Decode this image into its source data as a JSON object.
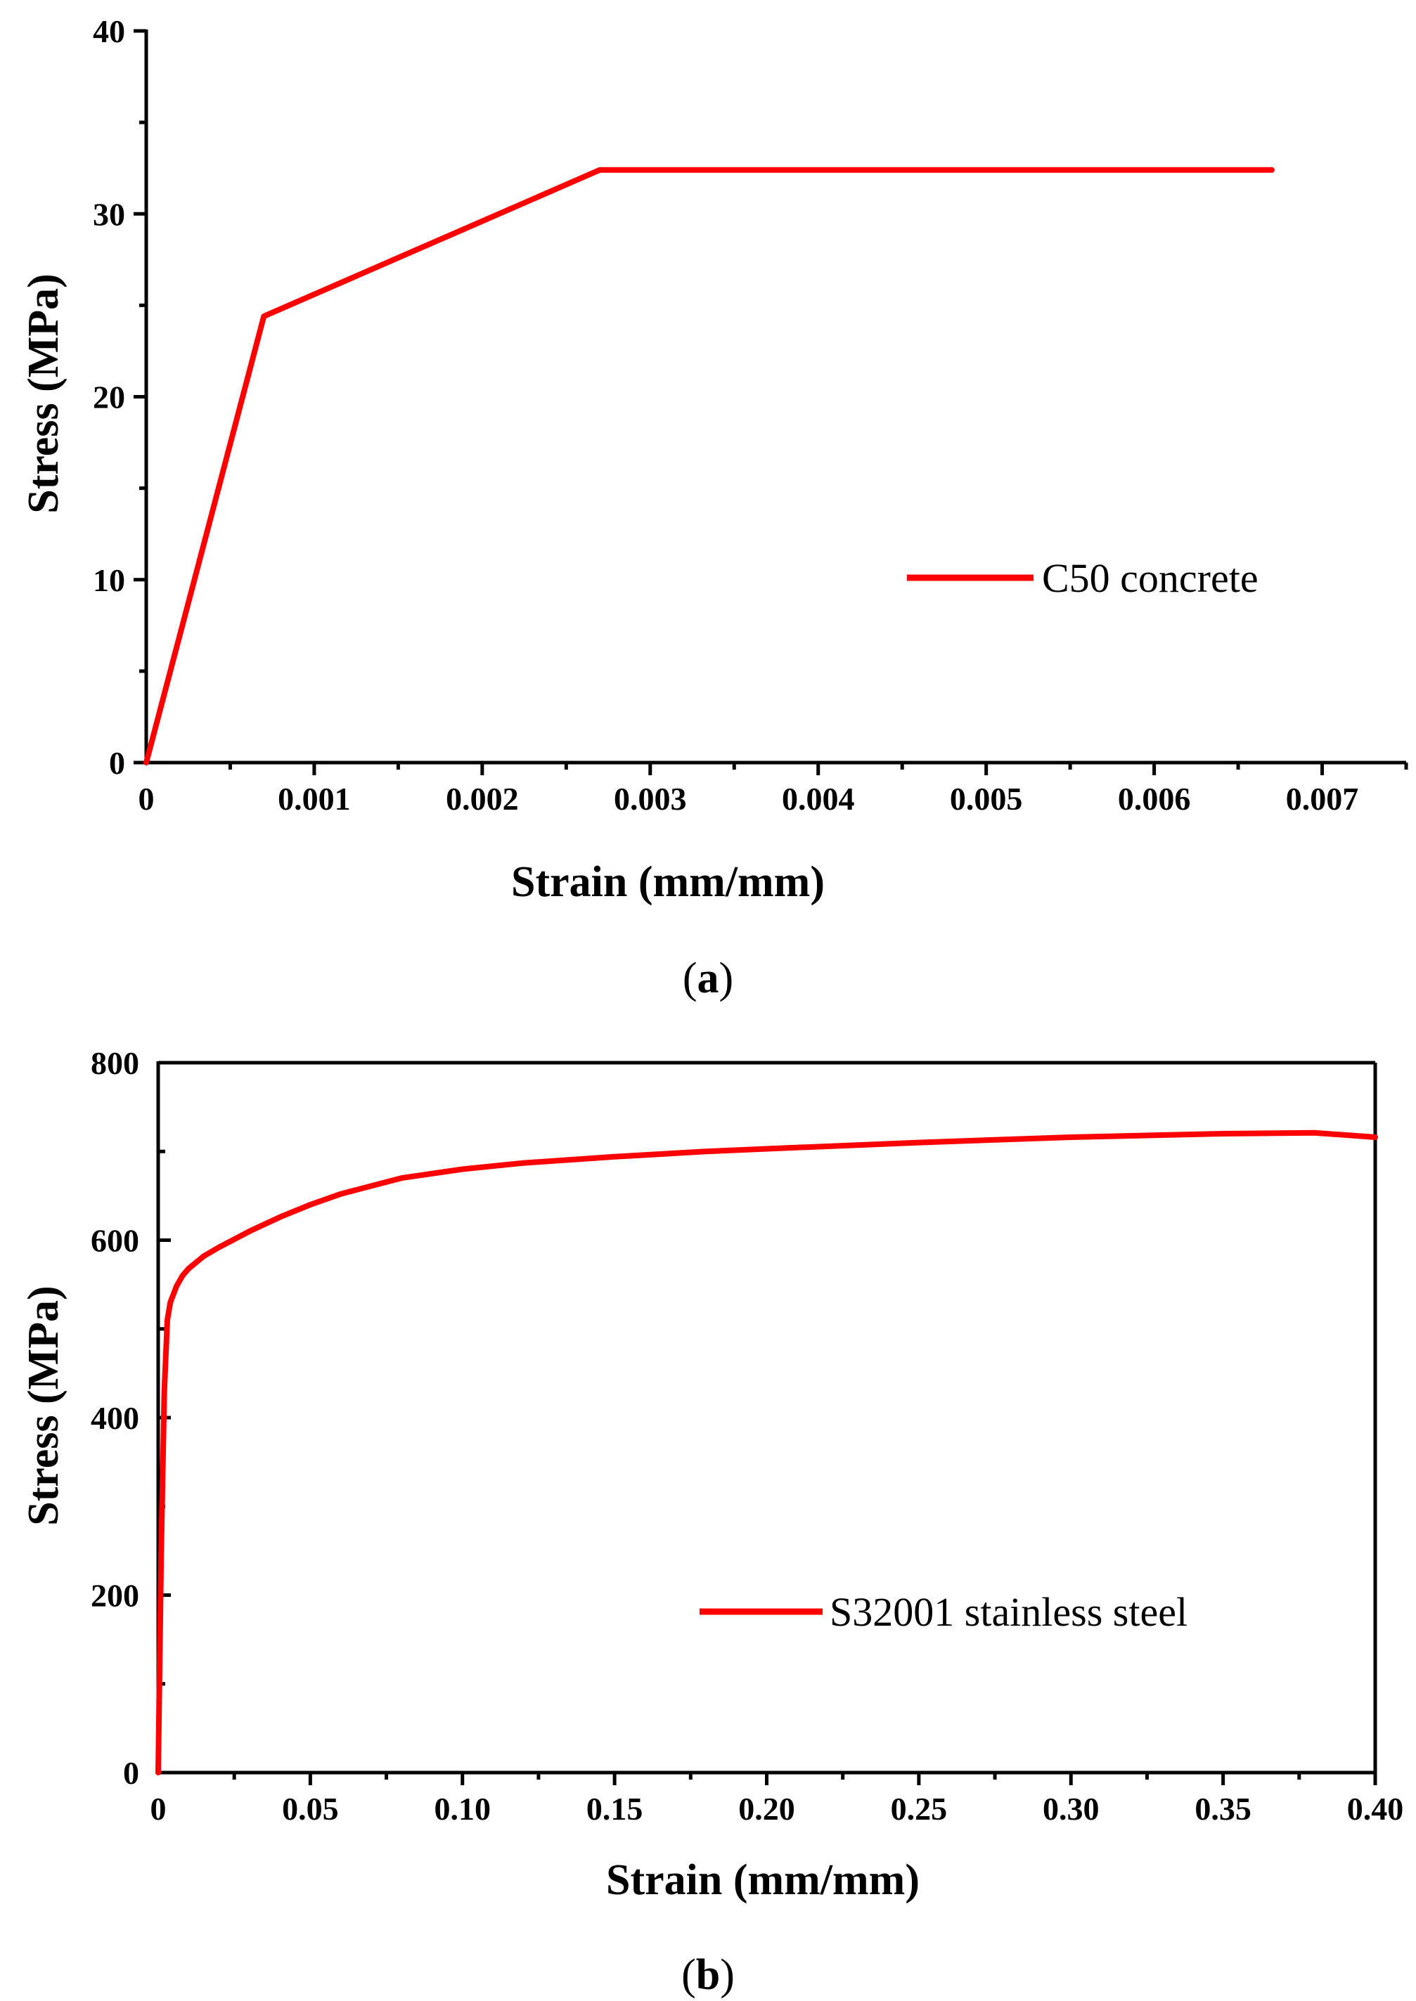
{
  "chart_data": [
    {
      "type": "line",
      "panel": "a",
      "caption": {
        "open": "(",
        "letter": "a",
        "close": ")"
      },
      "xlabel": "Strain (mm/mm)",
      "ylabel": "Stress (MPa)",
      "xlim": [
        0,
        0.0075
      ],
      "ylim": [
        0,
        40
      ],
      "xticks": [
        0,
        0.001,
        0.002,
        0.003,
        0.004,
        0.005,
        0.006,
        0.007
      ],
      "xtick_labels": [
        "0",
        "0.001",
        "0.002",
        "0.003",
        "0.004",
        "0.005",
        "0.006",
        "0.007"
      ],
      "yticks": [
        0,
        10,
        20,
        30,
        40
      ],
      "ytick_labels": [
        "0",
        "10",
        "20",
        "30",
        "40"
      ],
      "x_minor_step": 0.0005,
      "y_minor_step": 5,
      "grid": false,
      "legend": {
        "position": "center-right",
        "entries": [
          "C50 concrete"
        ]
      },
      "series": [
        {
          "name": "C50 concrete",
          "color": "#ff0000",
          "x": [
            0,
            0.0007,
            0.0027,
            0.0067
          ],
          "y": [
            0,
            24.4,
            32.4,
            32.4
          ]
        }
      ]
    },
    {
      "type": "line",
      "panel": "b",
      "caption": {
        "open": "(",
        "letter": "b",
        "close": ")"
      },
      "xlabel": "Strain (mm/mm)",
      "ylabel": "Stress (MPa)",
      "xlim": [
        0,
        0.4
      ],
      "ylim": [
        0,
        800
      ],
      "xticks": [
        0,
        0.05,
        0.1,
        0.15,
        0.2,
        0.25,
        0.3,
        0.35,
        0.4
      ],
      "xtick_labels": [
        "0",
        "0.05",
        "0.10",
        "0.15",
        "0.20",
        "0.25",
        "0.30",
        "0.35",
        "0.40"
      ],
      "yticks": [
        0,
        200,
        400,
        600,
        800
      ],
      "ytick_labels": [
        "0",
        "200",
        "400",
        "600",
        "800"
      ],
      "x_minor_step": 0.025,
      "y_minor_step": 100,
      "grid": false,
      "legend": {
        "position": "bottom-right",
        "entries": [
          "S32001 stainless steel"
        ]
      },
      "series": [
        {
          "name": "S32001 stainless steel",
          "color": "#ff0000",
          "x": [
            0,
            0.001,
            0.002,
            0.003,
            0.004,
            0.006,
            0.008,
            0.01,
            0.015,
            0.02,
            0.03,
            0.04,
            0.05,
            0.06,
            0.08,
            0.1,
            0.12,
            0.15,
            0.18,
            0.2,
            0.25,
            0.3,
            0.35,
            0.38,
            0.4
          ],
          "y": [
            0,
            250,
            430,
            510,
            530,
            548,
            560,
            568,
            582,
            592,
            610,
            626,
            640,
            652,
            670,
            680,
            687,
            694,
            700,
            703,
            710,
            716,
            720,
            721,
            716
          ]
        }
      ]
    }
  ]
}
